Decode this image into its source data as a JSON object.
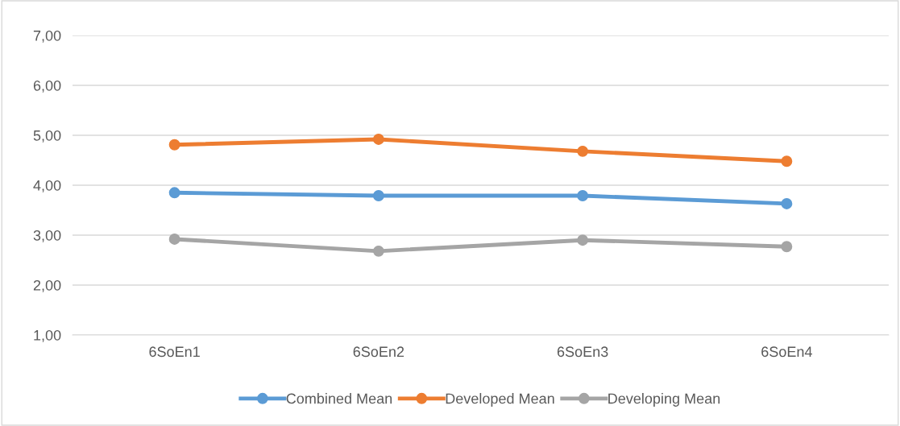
{
  "chart_data": {
    "type": "line",
    "categories": [
      "6SoEn1",
      "6SoEn2",
      "6SoEn3",
      "6SoEn4"
    ],
    "series": [
      {
        "name": "Combined Mean",
        "color": "#5b9bd5",
        "values": [
          3.85,
          3.79,
          3.79,
          3.63
        ]
      },
      {
        "name": "Developed Mean",
        "color": "#ed7d31",
        "values": [
          4.81,
          4.92,
          4.68,
          4.48
        ]
      },
      {
        "name": "Developing Mean",
        "color": "#a5a5a5",
        "values": [
          2.92,
          2.68,
          2.9,
          2.77
        ]
      }
    ],
    "ylim": [
      1,
      7
    ],
    "yticks": [
      {
        "value": 1,
        "label": "1,00"
      },
      {
        "value": 2,
        "label": "2,00"
      },
      {
        "value": 3,
        "label": "3,00"
      },
      {
        "value": 4,
        "label": "4,00"
      },
      {
        "value": 5,
        "label": "5,00"
      },
      {
        "value": 6,
        "label": "6,00"
      },
      {
        "value": 7,
        "label": "7,00"
      }
    ],
    "grid": "y",
    "legend": "bottom",
    "marker": "circle",
    "line_style": "solid"
  }
}
